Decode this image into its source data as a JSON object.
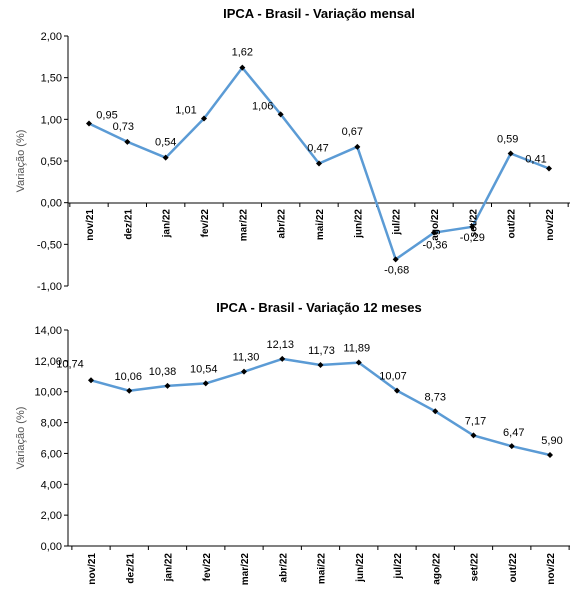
{
  "chart_data": [
    {
      "type": "line",
      "title": "IPCA - Brasil - Variação mensal",
      "ylabel": "Variação (%)",
      "xlabel": "",
      "categories": [
        "nov/21",
        "dez/21",
        "jan/22",
        "fev/22",
        "mar/22",
        "abr/22",
        "mai/22",
        "jun/22",
        "jul/22",
        "ago/22",
        "set/22",
        "out/22",
        "nov/22"
      ],
      "values": [
        0.95,
        0.73,
        0.54,
        1.01,
        1.62,
        1.06,
        0.47,
        0.67,
        -0.68,
        -0.36,
        -0.29,
        0.59,
        0.41
      ],
      "value_labels": [
        "0,95",
        "0,73",
        "0,54",
        "1,01",
        "1,62",
        "1,06",
        "0,47",
        "0,67",
        "-0,68",
        "-0,36",
        "-0,29",
        "0,59",
        "0,41"
      ],
      "ylim": [
        -1.0,
        2.0
      ],
      "yticks": [
        2.0,
        1.5,
        1.0,
        0.5,
        0.0,
        -0.5,
        -1.0
      ],
      "ytick_labels": [
        "2,00",
        "1,50",
        "1,00",
        "0,50",
        "0,00",
        "-0,50",
        "-1,00"
      ],
      "grid": false,
      "line_color": "#5B9BD5",
      "marker_color": "#000000"
    },
    {
      "type": "line",
      "title": "IPCA - Brasil - Variação 12 meses",
      "ylabel": "Variação (%)",
      "xlabel": "",
      "categories": [
        "nov/21",
        "dez/21",
        "jan/22",
        "fev/22",
        "mar/22",
        "abr/22",
        "mai/22",
        "jun/22",
        "jul/22",
        "ago/22",
        "set/22",
        "out/22",
        "nov/22"
      ],
      "values": [
        10.74,
        10.06,
        10.38,
        10.54,
        11.3,
        12.13,
        11.73,
        11.89,
        10.07,
        8.73,
        7.17,
        6.47,
        5.9
      ],
      "value_labels": [
        "10,74",
        "10,06",
        "10,38",
        "10,54",
        "11,30",
        "12,13",
        "11,73",
        "11,89",
        "10,07",
        "8,73",
        "7,17",
        "6,47",
        "5,90"
      ],
      "ylim": [
        0,
        14
      ],
      "yticks": [
        14,
        12,
        10,
        8,
        6,
        4,
        2,
        0
      ],
      "ytick_labels": [
        "14,00",
        "12,00",
        "10,00",
        "8,00",
        "6,00",
        "4,00",
        "2,00",
        "0,00"
      ],
      "grid": false,
      "line_color": "#5B9BD5",
      "marker_color": "#000000"
    }
  ]
}
